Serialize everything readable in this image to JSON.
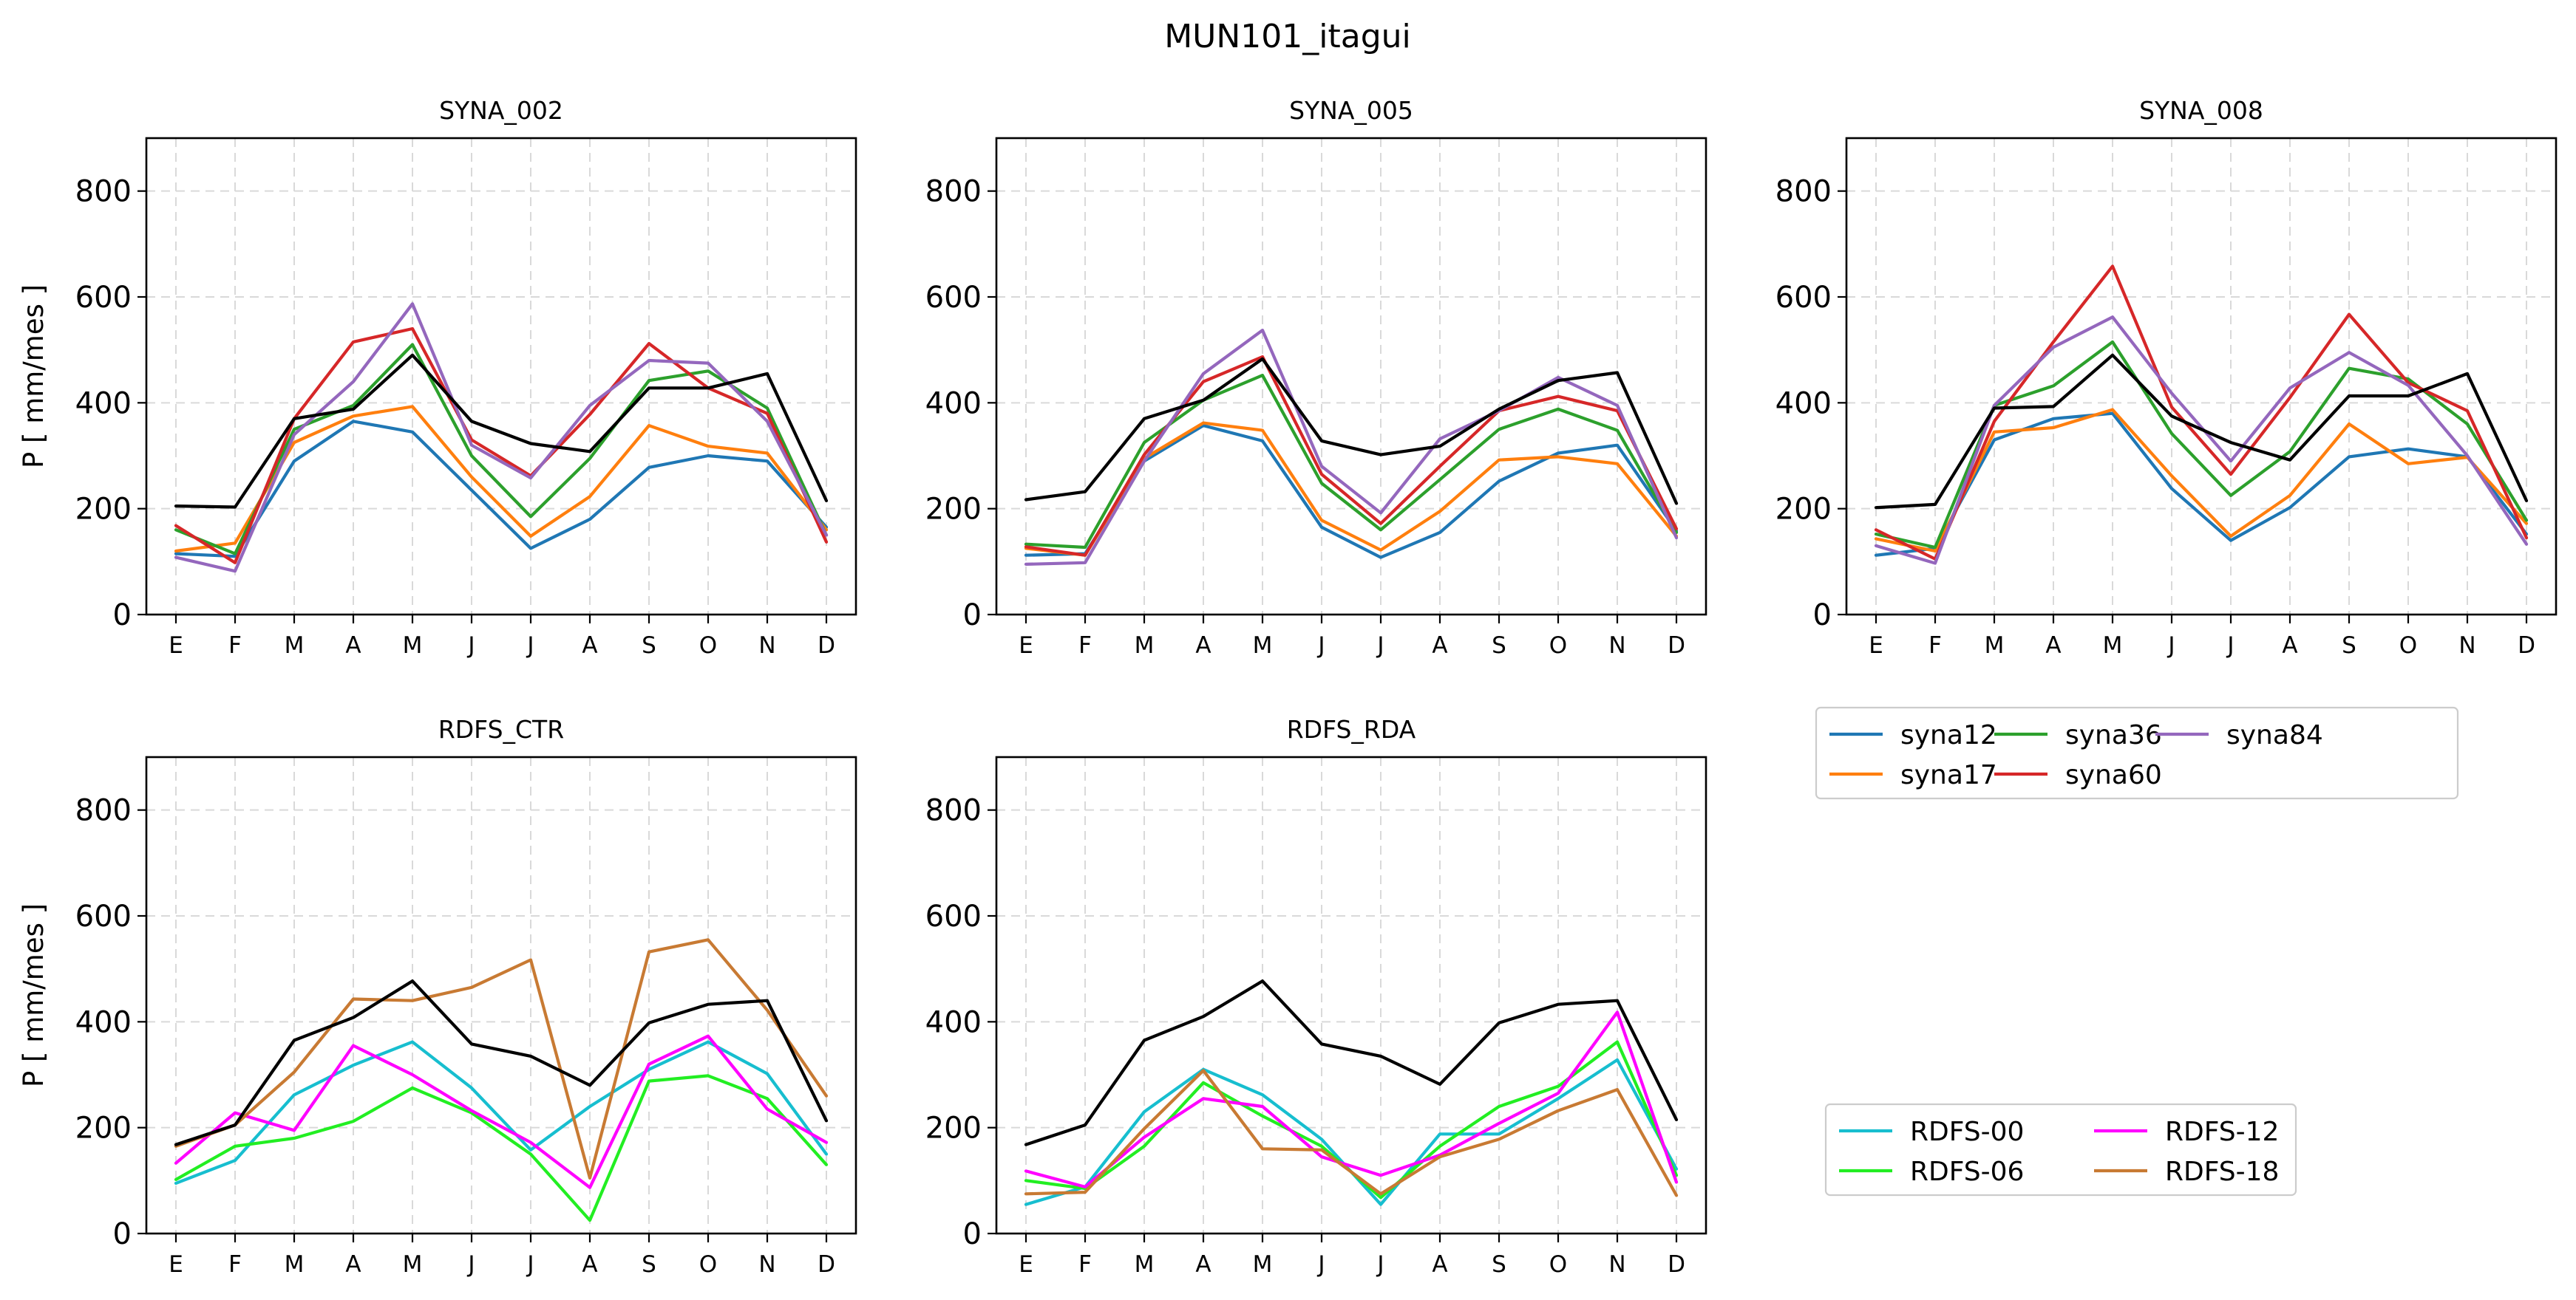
{
  "figure": {
    "title": "MUN101_itagui"
  },
  "chart_data": [
    {
      "type": "line",
      "title": "SYNA_002",
      "xlabel": "",
      "ylabel": "P [ mm/mes ]",
      "ylim": [
        0,
        900
      ],
      "yticks": [
        0,
        200,
        400,
        600,
        800
      ],
      "grid": true,
      "categories": [
        "E",
        "F",
        "M",
        "A",
        "M",
        "J",
        "J",
        "A",
        "S",
        "O",
        "N",
        "D"
      ],
      "series": [
        {
          "name": "syna12",
          "color": "#1f77b4",
          "values": [
            115,
            110,
            290,
            365,
            345,
            235,
            125,
            180,
            278,
            300,
            290,
            165
          ]
        },
        {
          "name": "syna17",
          "color": "#ff7f0e",
          "values": [
            120,
            135,
            325,
            375,
            393,
            260,
            148,
            223,
            357,
            318,
            305,
            160
          ]
        },
        {
          "name": "syna36",
          "color": "#2ca02c",
          "values": [
            160,
            115,
            350,
            395,
            510,
            300,
            185,
            295,
            442,
            460,
            390,
            150
          ]
        },
        {
          "name": "syna60",
          "color": "#d62728",
          "values": [
            168,
            98,
            370,
            515,
            540,
            330,
            262,
            378,
            512,
            428,
            380,
            137
          ]
        },
        {
          "name": "syna84",
          "color": "#9467bd",
          "values": [
            108,
            82,
            340,
            440,
            587,
            320,
            258,
            395,
            480,
            475,
            365,
            150
          ]
        },
        {
          "color": "#000000",
          "values": [
            205,
            203,
            370,
            388,
            490,
            365,
            323,
            308,
            428,
            428,
            455,
            215
          ]
        }
      ]
    },
    {
      "type": "line",
      "title": "SYNA_005",
      "xlabel": "",
      "ylabel": "",
      "ylim": [
        0,
        900
      ],
      "yticks": [
        0,
        200,
        400,
        600,
        800
      ],
      "grid": true,
      "categories": [
        "E",
        "F",
        "M",
        "A",
        "M",
        "J",
        "J",
        "A",
        "S",
        "O",
        "N",
        "D"
      ],
      "series": [
        {
          "name": "syna12",
          "color": "#1f77b4",
          "values": [
            112,
            115,
            290,
            357,
            328,
            165,
            108,
            155,
            252,
            305,
            320,
            158
          ]
        },
        {
          "name": "syna17",
          "color": "#ff7f0e",
          "values": [
            125,
            112,
            295,
            362,
            348,
            178,
            122,
            195,
            292,
            298,
            285,
            148
          ]
        },
        {
          "name": "syna36",
          "color": "#2ca02c",
          "values": [
            133,
            127,
            325,
            405,
            452,
            248,
            160,
            255,
            350,
            388,
            348,
            155
          ]
        },
        {
          "name": "syna60",
          "color": "#d62728",
          "values": [
            128,
            112,
            302,
            440,
            487,
            265,
            172,
            280,
            385,
            412,
            385,
            162
          ]
        },
        {
          "name": "syna84",
          "color": "#9467bd",
          "values": [
            95,
            98,
            290,
            455,
            537,
            280,
            192,
            332,
            385,
            448,
            395,
            145
          ]
        },
        {
          "color": "#000000",
          "values": [
            217,
            232,
            370,
            405,
            483,
            328,
            302,
            318,
            388,
            442,
            457,
            210
          ]
        }
      ]
    },
    {
      "type": "line",
      "title": "SYNA_008",
      "xlabel": "",
      "ylabel": "",
      "ylim": [
        0,
        900
      ],
      "yticks": [
        0,
        200,
        400,
        600,
        800
      ],
      "grid": true,
      "categories": [
        "E",
        "F",
        "M",
        "A",
        "M",
        "J",
        "J",
        "A",
        "S",
        "O",
        "N",
        "D"
      ],
      "series": [
        {
          "name": "syna12",
          "color": "#1f77b4",
          "values": [
            112,
            125,
            330,
            370,
            380,
            238,
            140,
            202,
            298,
            313,
            298,
            152
          ]
        },
        {
          "name": "syna17",
          "color": "#ff7f0e",
          "values": [
            143,
            120,
            345,
            353,
            387,
            262,
            148,
            225,
            360,
            285,
            297,
            172
          ]
        },
        {
          "name": "syna36",
          "color": "#2ca02c",
          "values": [
            152,
            127,
            395,
            432,
            515,
            342,
            225,
            308,
            465,
            445,
            360,
            178
          ]
        },
        {
          "name": "syna60",
          "color": "#d62728",
          "values": [
            160,
            105,
            365,
            515,
            658,
            392,
            265,
            410,
            567,
            438,
            385,
            145
          ]
        },
        {
          "name": "syna84",
          "color": "#9467bd",
          "values": [
            130,
            97,
            395,
            505,
            562,
            418,
            290,
            428,
            495,
            433,
            300,
            133
          ]
        },
        {
          "color": "#000000",
          "values": [
            202,
            208,
            390,
            393,
            490,
            375,
            325,
            292,
            413,
            413,
            455,
            215
          ]
        }
      ]
    },
    {
      "type": "line",
      "title": "RDFS_CTR",
      "xlabel": "",
      "ylabel": "P [ mm/mes ]",
      "ylim": [
        0,
        900
      ],
      "yticks": [
        0,
        200,
        400,
        600,
        800
      ],
      "grid": true,
      "categories": [
        "E",
        "F",
        "M",
        "A",
        "M",
        "J",
        "J",
        "A",
        "S",
        "O",
        "N",
        "D"
      ],
      "series": [
        {
          "name": "RDFS-00",
          "color": "#17becf",
          "values": [
            95,
            138,
            262,
            318,
            362,
            275,
            158,
            240,
            310,
            362,
            302,
            150
          ]
        },
        {
          "name": "RDFS-06",
          "color": "#22ee22",
          "values": [
            102,
            165,
            180,
            212,
            275,
            228,
            150,
            25,
            288,
            298,
            255,
            130
          ]
        },
        {
          "name": "RDFS-12",
          "color": "#ff00ff",
          "values": [
            133,
            228,
            195,
            355,
            300,
            232,
            172,
            87,
            320,
            373,
            235,
            172
          ]
        },
        {
          "name": "RDFS-18",
          "color": "#c87a33",
          "values": [
            165,
            205,
            305,
            443,
            440,
            465,
            517,
            105,
            532,
            555,
            422,
            260
          ]
        },
        {
          "color": "#000000",
          "values": [
            168,
            205,
            365,
            408,
            477,
            358,
            335,
            280,
            398,
            433,
            440,
            213
          ]
        }
      ]
    },
    {
      "type": "line",
      "title": "RDFS_RDA",
      "xlabel": "",
      "ylabel": "",
      "ylim": [
        0,
        900
      ],
      "yticks": [
        0,
        200,
        400,
        600,
        800
      ],
      "grid": true,
      "categories": [
        "E",
        "F",
        "M",
        "A",
        "M",
        "J",
        "J",
        "A",
        "S",
        "O",
        "N",
        "D"
      ],
      "series": [
        {
          "name": "RDFS-00",
          "color": "#17becf",
          "values": [
            55,
            88,
            230,
            310,
            262,
            178,
            55,
            188,
            188,
            255,
            328,
            122
          ]
        },
        {
          "name": "RDFS-06",
          "color": "#22ee22",
          "values": [
            100,
            85,
            165,
            285,
            222,
            165,
            68,
            165,
            240,
            278,
            362,
            110
          ]
        },
        {
          "name": "RDFS-12",
          "color": "#ff00ff",
          "values": [
            118,
            88,
            182,
            255,
            240,
            145,
            110,
            148,
            208,
            265,
            418,
            97
          ]
        },
        {
          "name": "RDFS-18",
          "color": "#c87a33",
          "values": [
            75,
            78,
            198,
            308,
            160,
            158,
            75,
            145,
            178,
            232,
            272,
            72
          ]
        },
        {
          "color": "#000000",
          "values": [
            168,
            205,
            365,
            410,
            477,
            358,
            335,
            282,
            398,
            433,
            440,
            215
          ]
        }
      ]
    }
  ],
  "legends": [
    {
      "columns": 3,
      "entries": [
        {
          "label": "syna12",
          "color": "#1f77b4"
        },
        {
          "label": "syna17",
          "color": "#ff7f0e"
        },
        {
          "label": "syna36",
          "color": "#2ca02c"
        },
        {
          "label": "syna60",
          "color": "#d62728"
        },
        {
          "label": "syna84",
          "color": "#9467bd"
        }
      ]
    },
    {
      "columns": 2,
      "entries": [
        {
          "label": "RDFS-00",
          "color": "#17becf"
        },
        {
          "label": "RDFS-06",
          "color": "#22ee22"
        },
        {
          "label": "RDFS-12",
          "color": "#ff00ff"
        },
        {
          "label": "RDFS-18",
          "color": "#c87a33"
        }
      ]
    }
  ]
}
